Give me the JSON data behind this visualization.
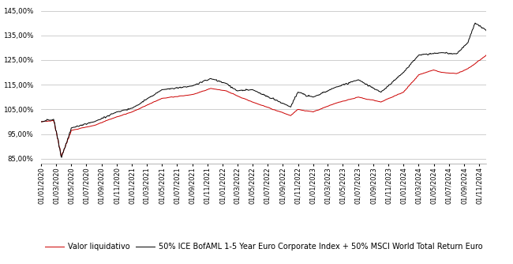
{
  "line1_color": "#cc0000",
  "line2_color": "#000000",
  "line1_label": "Valor liquidativo",
  "line2_label": "50% ICE BofAML 1-5 Year Euro Corporate Index + 50% MSCI World Total Return Euro",
  "background_color": "#ffffff",
  "grid_color": "#bbbbbb",
  "linewidth": 0.7,
  "legend_fontsize": 7,
  "tick_fontsize": 6.2,
  "ylim_low": 0.83,
  "ylim_high": 1.48,
  "yticks": [
    0.85,
    0.95,
    1.05,
    1.15,
    1.25,
    1.35,
    1.45
  ]
}
